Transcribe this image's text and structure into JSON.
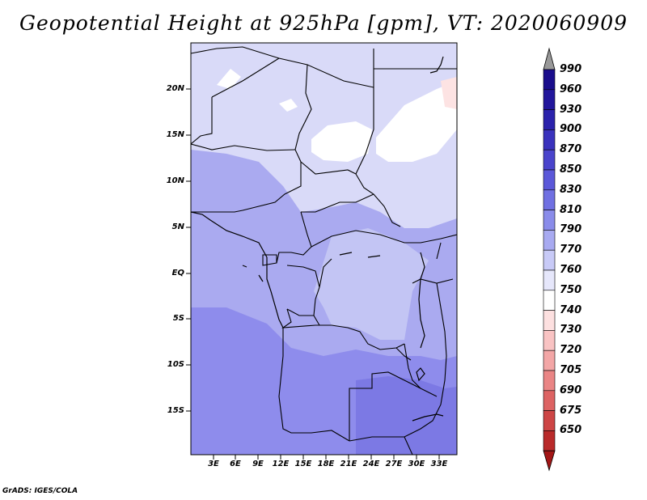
{
  "title": "Geopotential Height at 925hPa [gpm], VT: 2020060909",
  "footer": "GrADS: IGES/COLA",
  "axes": {
    "lat_labels": [
      "20N",
      "15N",
      "10N",
      "5N",
      "EQ",
      "5S",
      "10S",
      "15S"
    ],
    "lon_labels": [
      "3E",
      "6E",
      "9E",
      "12E",
      "15E",
      "18E",
      "21E",
      "24E",
      "27E",
      "30E",
      "33E"
    ]
  },
  "colorbar": {
    "levels": [
      "990",
      "960",
      "930",
      "900",
      "870",
      "850",
      "830",
      "810",
      "790",
      "770",
      "760",
      "750",
      "740",
      "730",
      "720",
      "705",
      "690",
      "675",
      "650"
    ],
    "colors": [
      "#1a0d8c",
      "#22169c",
      "#2b22ac",
      "#3a32bd",
      "#4a44cc",
      "#5b58d9",
      "#7070e2",
      "#8a8cea",
      "#a8aaf1",
      "#c8caf7",
      "#e6e7fb",
      "#ffffff",
      "#fde0e0",
      "#f9c3c3",
      "#f3a6a6",
      "#ea8585",
      "#dd6363",
      "#cd4545",
      "#b92a2a",
      "#a31616"
    ],
    "top_arrow_color": "#999999"
  },
  "map_fill_colors": {
    "lightest": "#d9daf8",
    "light": "#c3c5f4",
    "medium": "#aaaaf0",
    "dark": "#8e8cec",
    "darker": "#7c79e4",
    "white": "#ffffff",
    "pink": "#fde3e3"
  }
}
